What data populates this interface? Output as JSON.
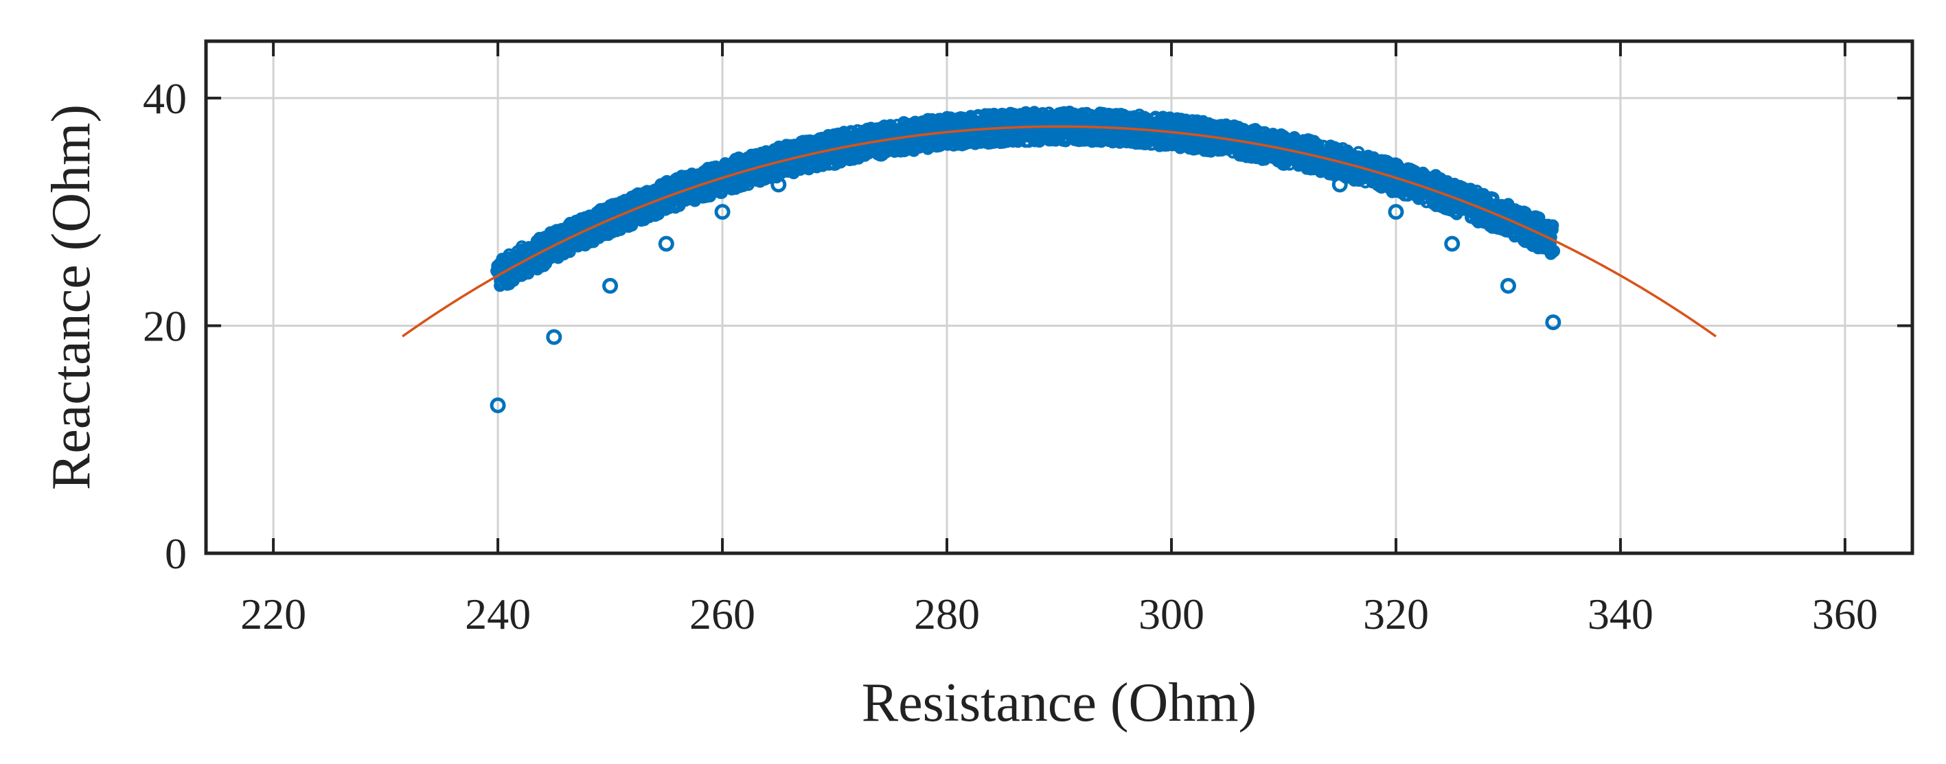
{
  "chart_data": {
    "type": "scatter",
    "title": "",
    "xlabel": "Resistance (Ohm)",
    "ylabel": "Reactance (Ohm)",
    "xlim": [
      214,
      366
    ],
    "ylim": [
      0,
      45
    ],
    "xticks": [
      220,
      240,
      260,
      280,
      300,
      320,
      340,
      360
    ],
    "yticks": [
      0,
      20,
      40
    ],
    "grid": true,
    "legend": "none",
    "series": [
      {
        "kind": "scatter",
        "color": "#0072BD",
        "x_range": [
          240,
          334
        ],
        "center": [
          290,
          -64.5
        ],
        "radius": 102,
        "band_thickness": 2.6,
        "points": [
          [
            240,
            13
          ],
          [
            245,
            19
          ],
          [
            250,
            23.5
          ],
          [
            255,
            27.2
          ],
          [
            260,
            30
          ],
          [
            265,
            32.4
          ],
          [
            270,
            34.3
          ],
          [
            275,
            35.8
          ],
          [
            280,
            36.9
          ],
          [
            285,
            37.6
          ],
          [
            290,
            37.8
          ],
          [
            295,
            37.6
          ],
          [
            300,
            36.9
          ],
          [
            305,
            35.8
          ],
          [
            310,
            34.3
          ],
          [
            315,
            32.4
          ],
          [
            320,
            30
          ],
          [
            325,
            27.2
          ],
          [
            330,
            23.5
          ],
          [
            334,
            20.3
          ]
        ]
      },
      {
        "kind": "line",
        "color": "#D95319",
        "x_range": [
          231.5,
          348.5
        ],
        "center": [
          290,
          -64.5
        ],
        "radius": 102
      }
    ]
  }
}
